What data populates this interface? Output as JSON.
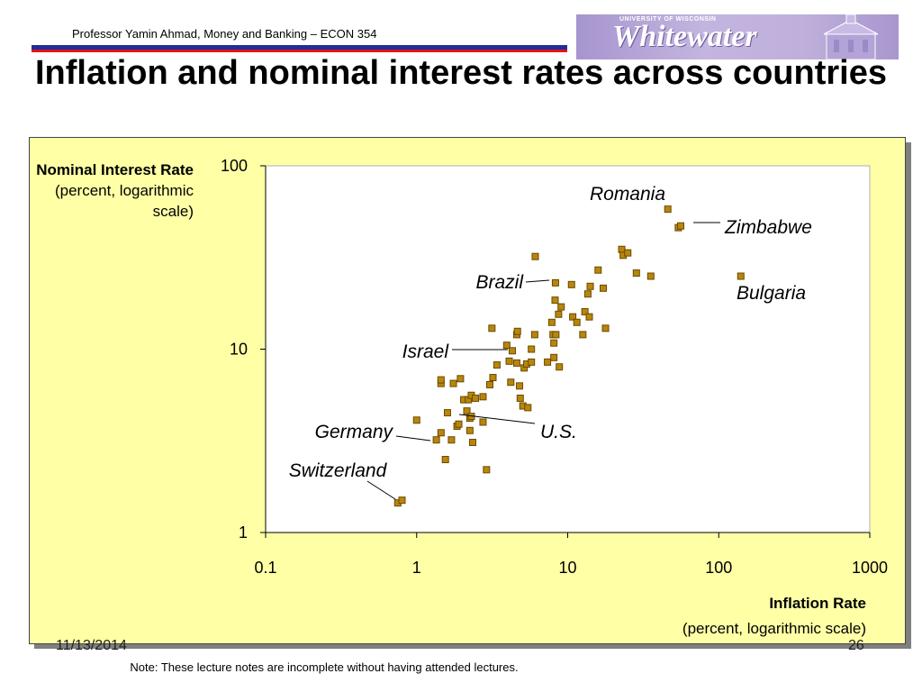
{
  "header": {
    "course": "Professor Yamin Ahmad, Money and Banking – ECON 354",
    "logo_univ": "UNIVERSITY OF WISCONSIN",
    "logo_word": "Whitewater"
  },
  "title": "Inflation and nominal interest rates across countries",
  "y_label": {
    "bold": "Nominal Interest Rate",
    "sub": "(percent, logarithmic scale)"
  },
  "x_label": {
    "bold": "Inflation Rate",
    "sub": "(percent, logarithmic scale)"
  },
  "footer": {
    "date": "11/13/2014",
    "page": "26",
    "note": "Note: These lecture notes are incomplete without having attended lectures."
  },
  "colors": {
    "panel": "#ffffa6",
    "marker_fill": "#b8860b",
    "marker_edge": "#6b4a00",
    "rule_blue": "#1f2e9a",
    "rule_red": "#e4121b"
  },
  "chart_data": {
    "type": "scatter",
    "x_scale": "log",
    "y_scale": "log",
    "xlim": [
      0.1,
      1000
    ],
    "ylim": [
      1,
      100
    ],
    "x_ticks": [
      "0.1",
      "1",
      "10",
      "100",
      "1000"
    ],
    "y_ticks": [
      "1",
      "10",
      "100"
    ],
    "grid": false,
    "points": [
      [
        0.75,
        1.45
      ],
      [
        0.8,
        1.5
      ],
      [
        1.0,
        4.1
      ],
      [
        1.35,
        3.2
      ],
      [
        1.45,
        3.5
      ],
      [
        1.45,
        6.5
      ],
      [
        1.45,
        6.8
      ],
      [
        1.55,
        2.5
      ],
      [
        1.6,
        4.5
      ],
      [
        1.7,
        3.2
      ],
      [
        1.75,
        6.5
      ],
      [
        1.85,
        3.8
      ],
      [
        1.9,
        3.9
      ],
      [
        1.95,
        6.9
      ],
      [
        2.05,
        5.3
      ],
      [
        2.15,
        4.6
      ],
      [
        2.2,
        5.3
      ],
      [
        2.25,
        4.2
      ],
      [
        2.25,
        3.6
      ],
      [
        2.3,
        4.3
      ],
      [
        2.3,
        5.6
      ],
      [
        2.35,
        3.1
      ],
      [
        2.45,
        5.4
      ],
      [
        2.75,
        5.5
      ],
      [
        2.75,
        4.0
      ],
      [
        2.9,
        2.2
      ],
      [
        3.05,
        6.4
      ],
      [
        3.15,
        13.0
      ],
      [
        3.2,
        7.0
      ],
      [
        3.4,
        8.2
      ],
      [
        3.95,
        10.5
      ],
      [
        4.1,
        8.6
      ],
      [
        4.2,
        6.6
      ],
      [
        4.3,
        9.8
      ],
      [
        4.6,
        8.4
      ],
      [
        4.6,
        12.0
      ],
      [
        4.65,
        12.5
      ],
      [
        4.8,
        6.3
      ],
      [
        4.85,
        5.4
      ],
      [
        5.05,
        4.9
      ],
      [
        5.15,
        7.9
      ],
      [
        5.35,
        8.3
      ],
      [
        5.45,
        4.8
      ],
      [
        5.75,
        8.5
      ],
      [
        5.75,
        10.0
      ],
      [
        6.05,
        12.0
      ],
      [
        6.1,
        32.0
      ],
      [
        7.35,
        8.5
      ],
      [
        7.85,
        14.0
      ],
      [
        8.0,
        12.0
      ],
      [
        8.1,
        9.0
      ],
      [
        8.1,
        10.8
      ],
      [
        8.25,
        18.5
      ],
      [
        8.3,
        23.0
      ],
      [
        8.35,
        12.0
      ],
      [
        8.7,
        15.5
      ],
      [
        8.8,
        8.0
      ],
      [
        9.05,
        17.0
      ],
      [
        10.6,
        22.5
      ],
      [
        10.8,
        15.0
      ],
      [
        11.5,
        14.0
      ],
      [
        12.6,
        12.0
      ],
      [
        13.0,
        16.0
      ],
      [
        13.6,
        20.0
      ],
      [
        13.9,
        15.0
      ],
      [
        14.1,
        22.0
      ],
      [
        15.9,
        27.0
      ],
      [
        17.2,
        21.5
      ],
      [
        17.8,
        13.0
      ],
      [
        22.8,
        35.0
      ],
      [
        23.3,
        32.5
      ],
      [
        25.0,
        33.5
      ],
      [
        28.5,
        26.0
      ],
      [
        35.5,
        25.0
      ],
      [
        46.0,
        58.0
      ],
      [
        54.0,
        46.0
      ],
      [
        56.0,
        47.0
      ],
      [
        140.0,
        25.0
      ]
    ],
    "annotations": [
      {
        "text": "Romania",
        "x": 46,
        "y": 58
      },
      {
        "text": "Zimbabwe",
        "x": 56,
        "y": 47
      },
      {
        "text": "Bulgaria",
        "x": 140,
        "y": 25
      },
      {
        "text": "Brazil",
        "x": 8.3,
        "y": 23
      },
      {
        "text": "Israel",
        "x": 4.3,
        "y": 9.8
      },
      {
        "text": "U.S.",
        "x": 2.3,
        "y": 4.3
      },
      {
        "text": "Germany",
        "x": 1.35,
        "y": 3.2
      },
      {
        "text": "Switzerland",
        "x": 0.75,
        "y": 1.45
      }
    ]
  }
}
